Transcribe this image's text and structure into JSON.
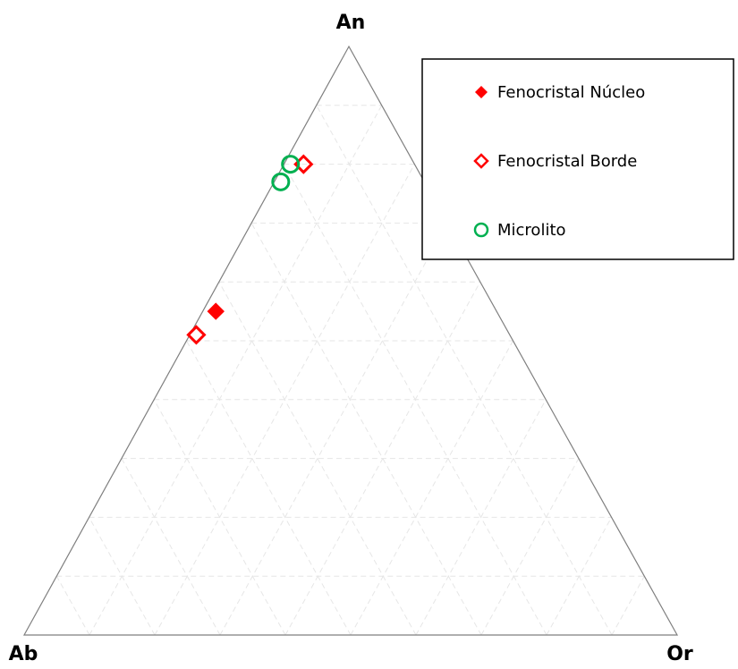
{
  "chart_data": {
    "type": "scatter",
    "subtype": "ternary",
    "vertices": {
      "top": "An",
      "left": "Ab",
      "right": "Or"
    },
    "grid": true,
    "grid_step": 10,
    "legend_position": "top-right",
    "series": [
      {
        "name": "Fenocristal Núcleo",
        "marker": "filled-diamond",
        "color": "#ff0000",
        "points": [
          {
            "An": 55,
            "Ab": 43,
            "Or": 2
          }
        ]
      },
      {
        "name": "Fenocristal Borde",
        "marker": "open-diamond",
        "color": "#ff0000",
        "points": [
          {
            "An": 80,
            "Ab": 17,
            "Or": 3
          },
          {
            "An": 51,
            "Ab": 48,
            "Or": 1
          }
        ]
      },
      {
        "name": "Microlito",
        "marker": "open-circle",
        "color": "#00b050",
        "points": [
          {
            "An": 80,
            "Ab": 19,
            "Or": 1
          },
          {
            "An": 77,
            "Ab": 22,
            "Or": 1
          }
        ]
      }
    ]
  }
}
